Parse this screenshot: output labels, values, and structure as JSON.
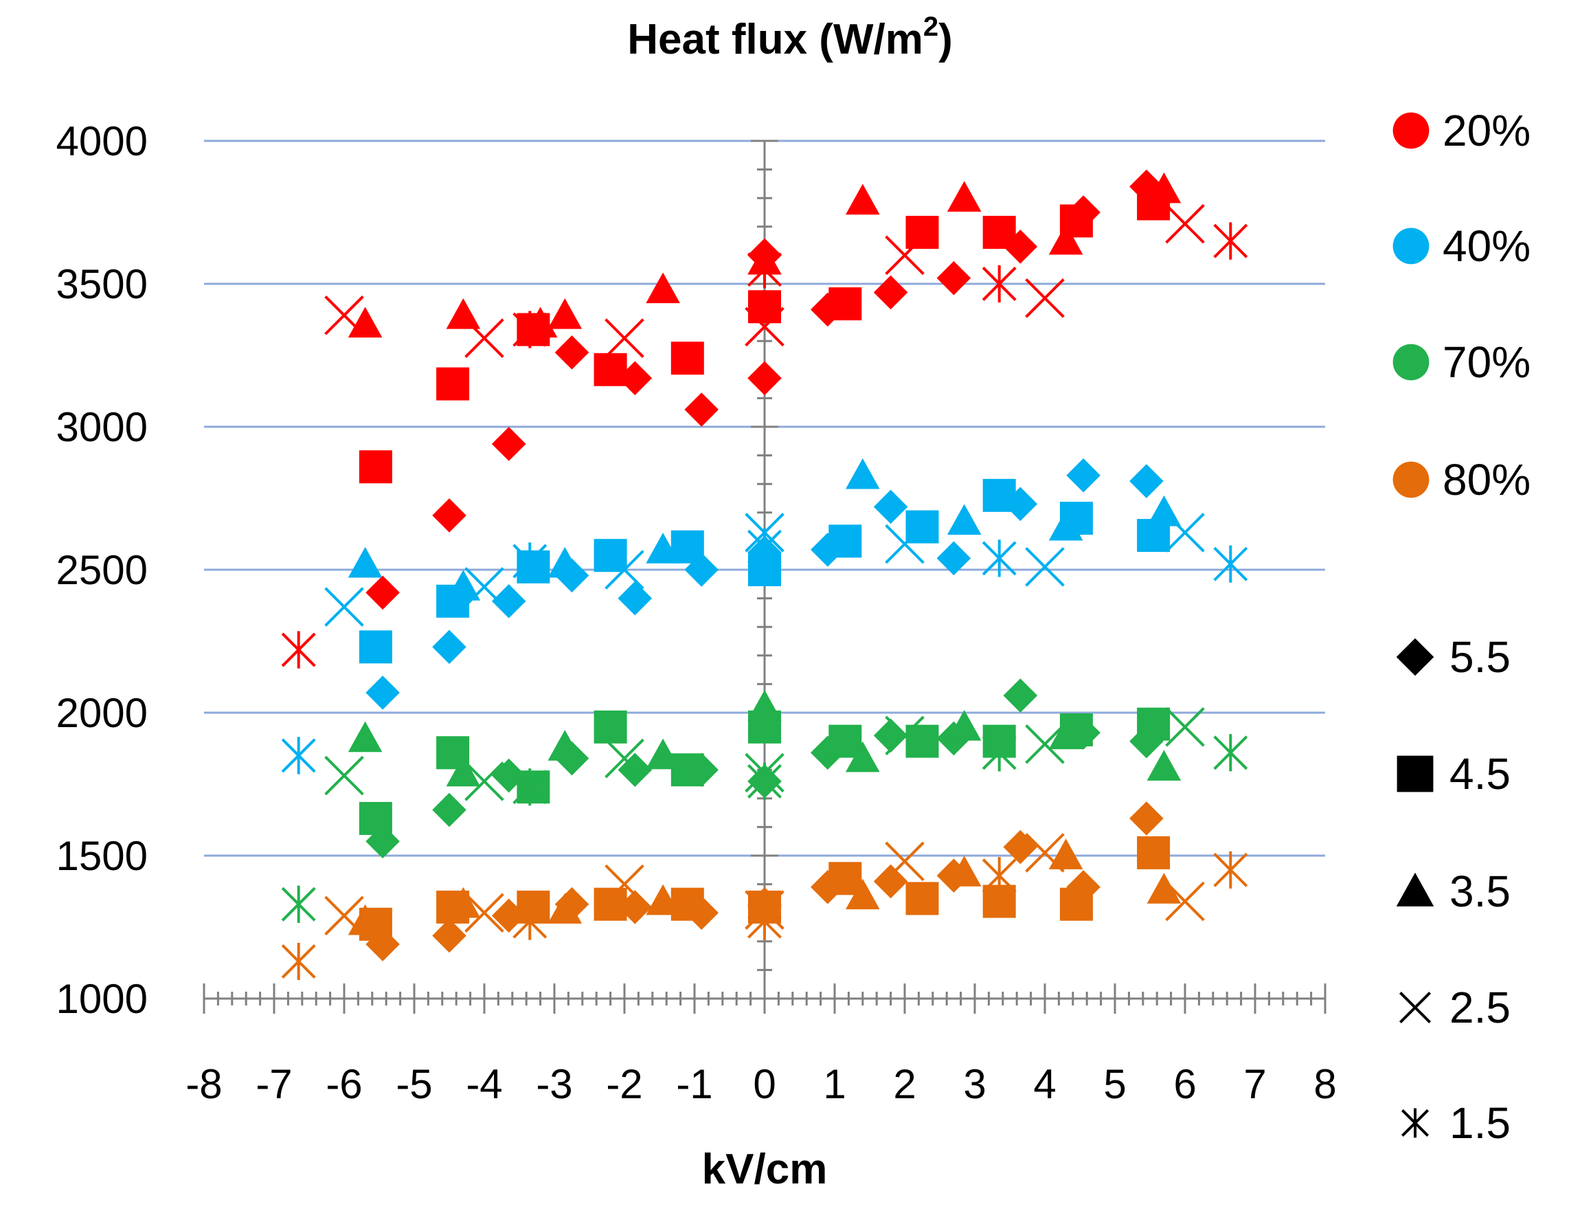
{
  "chart_data": {
    "type": "scatter",
    "title": "Heat flux (W/m",
    "title_sup": "2",
    "title_suffix": ")",
    "xlabel": "kV/cm",
    "ylabel": "",
    "xlim": [
      -8,
      8
    ],
    "ylim": [
      1000,
      4000
    ],
    "x_ticks": [
      "-8",
      "-7",
      "-6",
      "-5",
      "-4",
      "-3",
      "-2",
      "-1",
      "0",
      "1",
      "2",
      "3",
      "4",
      "5",
      "6",
      "7",
      "8"
    ],
    "y_ticks": [
      "4000",
      "3500",
      "3000",
      "2500",
      "2000",
      "1500",
      "1000"
    ],
    "gridlines": [
      1500,
      2000,
      2500,
      3000,
      3500,
      4000
    ],
    "legend_position": "right",
    "humidity_legend": [
      {
        "label": "20%",
        "color": "#ff0000"
      },
      {
        "label": "40%",
        "color": "#00b0f0"
      },
      {
        "label": "70%",
        "color": "#22b14c"
      },
      {
        "label": "80%",
        "color": "#e46c0a"
      }
    ],
    "marker_legend": [
      {
        "label": "5.5",
        "marker": "diamond"
      },
      {
        "label": "4.5",
        "marker": "square"
      },
      {
        "label": "3.5",
        "marker": "triangle"
      },
      {
        "label": "2.5",
        "marker": "x"
      },
      {
        "label": "1.5",
        "marker": "star"
      }
    ],
    "series": [
      {
        "name": "20% / 5.5",
        "color": "#ff0000",
        "marker": "diamond",
        "x": [
          -5.45,
          -4.5,
          -3.65,
          -2.75,
          -1.85,
          -0.9,
          0,
          0,
          0.9,
          1.8,
          2.7,
          3.65,
          4.55,
          5.45
        ],
        "y": [
          2420,
          2690,
          2940,
          3260,
          3170,
          3060,
          3170,
          3600,
          3410,
          3470,
          3520,
          3630,
          3750,
          3840
        ]
      },
      {
        "name": "20% / 4.5",
        "color": "#ff0000",
        "marker": "square",
        "x": [
          -5.55,
          -4.45,
          -3.3,
          -2.2,
          -1.1,
          0,
          1.15,
          2.25,
          3.35,
          4.45,
          5.55
        ],
        "y": [
          2860,
          3150,
          3340,
          3200,
          3240,
          3420,
          3430,
          3680,
          3680,
          3720,
          3780
        ]
      },
      {
        "name": "20% / 3.5",
        "color": "#ff0000",
        "marker": "triangle",
        "x": [
          -5.7,
          -4.3,
          -3.2,
          -2.85,
          -1.45,
          0,
          1.4,
          2.85,
          4.3,
          5.7
        ],
        "y": [
          3360,
          3390,
          3360,
          3390,
          3480,
          3580,
          3790,
          3800,
          3650,
          3830
        ]
      },
      {
        "name": "20% / 2.5",
        "color": "#ff0000",
        "marker": "x",
        "x": [
          -6,
          -4,
          -2,
          0,
          2,
          4,
          6
        ],
        "y": [
          3390,
          3310,
          3310,
          3350,
          3600,
          3450,
          3710
        ]
      },
      {
        "name": "20% / 1.5",
        "color": "#ff0000",
        "marker": "star",
        "x": [
          -6.65,
          -3.35,
          0,
          3.35,
          6.65
        ],
        "y": [
          2220,
          3340,
          3550,
          3500,
          3650
        ]
      },
      {
        "name": "40% / 5.5",
        "color": "#00b0f0",
        "marker": "diamond",
        "x": [
          -5.45,
          -4.5,
          -3.65,
          -2.75,
          -1.85,
          -0.9,
          0,
          0.9,
          1.8,
          2.7,
          3.65,
          4.55,
          5.45
        ],
        "y": [
          2070,
          2230,
          2390,
          2480,
          2400,
          2500,
          2560,
          2570,
          2720,
          2540,
          2730,
          2830,
          2810
        ]
      },
      {
        "name": "40% / 4.5",
        "color": "#00b0f0",
        "marker": "square",
        "x": [
          -5.55,
          -4.45,
          -3.3,
          -2.2,
          -1.1,
          0,
          1.15,
          2.25,
          3.35,
          4.45,
          5.55
        ],
        "y": [
          2230,
          2390,
          2510,
          2550,
          2580,
          2500,
          2600,
          2650,
          2760,
          2680,
          2620
        ]
      },
      {
        "name": "40% / 3.5",
        "color": "#00b0f0",
        "marker": "triangle",
        "x": [
          -5.7,
          -4.3,
          -2.85,
          -1.45,
          0,
          1.4,
          2.85,
          4.3,
          5.7
        ],
        "y": [
          2520,
          2440,
          2520,
          2570,
          2560,
          2830,
          2670,
          2650,
          2700
        ]
      },
      {
        "name": "40% / 2.5",
        "color": "#00b0f0",
        "marker": "x",
        "x": [
          -6,
          -4,
          -2,
          0,
          2,
          4,
          6
        ],
        "y": [
          2370,
          2440,
          2500,
          2630,
          2590,
          2510,
          2630
        ]
      },
      {
        "name": "40% / 1.5",
        "color": "#00b0f0",
        "marker": "star",
        "x": [
          -6.65,
          -3.35,
          0,
          3.35,
          6.65
        ],
        "y": [
          1850,
          2530,
          2580,
          2540,
          2520
        ]
      },
      {
        "name": "70% / 5.5",
        "color": "#22b14c",
        "marker": "diamond",
        "x": [
          -5.45,
          -4.5,
          -3.65,
          -2.75,
          -1.85,
          -0.9,
          0,
          0.9,
          1.8,
          2.7,
          3.65,
          4.55,
          5.45
        ],
        "y": [
          1550,
          1660,
          1780,
          1840,
          1800,
          1800,
          1760,
          1860,
          1920,
          1910,
          2060,
          1930,
          1900
        ]
      },
      {
        "name": "70% / 4.5",
        "color": "#22b14c",
        "marker": "square",
        "x": [
          -5.55,
          -4.45,
          -3.3,
          -2.2,
          -1.1,
          0,
          1.15,
          2.25,
          3.35,
          4.45,
          5.55
        ],
        "y": [
          1630,
          1860,
          1740,
          1950,
          1800,
          1950,
          1900,
          1900,
          1900,
          1940,
          1960
        ]
      },
      {
        "name": "70% / 3.5",
        "color": "#22b14c",
        "marker": "triangle",
        "x": [
          -5.7,
          -4.3,
          -2.85,
          -1.45,
          0,
          1.4,
          2.85,
          4.3,
          5.7
        ],
        "y": [
          1910,
          1790,
          1880,
          1850,
          2020,
          1840,
          1950,
          1920,
          1810
        ]
      },
      {
        "name": "70% / 2.5",
        "color": "#22b14c",
        "marker": "x",
        "x": [
          -6,
          -4,
          -2,
          0,
          2,
          4,
          6
        ],
        "y": [
          1780,
          1760,
          1840,
          1790,
          1920,
          1890,
          1950
        ]
      },
      {
        "name": "70% / 1.5",
        "color": "#22b14c",
        "marker": "star",
        "x": [
          -6.65,
          -3.35,
          0,
          3.35,
          6.65
        ],
        "y": [
          1330,
          1740,
          1760,
          1860,
          1860
        ]
      },
      {
        "name": "80% / 5.5",
        "color": "#e46c0a",
        "marker": "diamond",
        "x": [
          -5.45,
          -4.5,
          -3.65,
          -2.75,
          -1.85,
          -0.9,
          0,
          0.9,
          1.8,
          2.7,
          3.65,
          4.55,
          5.45
        ],
        "y": [
          1190,
          1220,
          1290,
          1330,
          1320,
          1300,
          1330,
          1390,
          1410,
          1430,
          1530,
          1390,
          1630
        ]
      },
      {
        "name": "80% / 4.5",
        "color": "#e46c0a",
        "marker": "square",
        "x": [
          -5.55,
          -4.45,
          -3.3,
          -2.2,
          -1.1,
          0,
          1.15,
          2.25,
          3.35,
          4.45,
          5.55
        ],
        "y": [
          1260,
          1320,
          1320,
          1330,
          1330,
          1320,
          1420,
          1350,
          1340,
          1330,
          1510
        ]
      },
      {
        "name": "80% / 3.5",
        "color": "#e46c0a",
        "marker": "triangle",
        "x": [
          -5.7,
          -4.3,
          -2.85,
          -1.45,
          0,
          1.4,
          2.85,
          4.3,
          5.7
        ],
        "y": [
          1270,
          1330,
          1310,
          1340,
          1330,
          1360,
          1440,
          1500,
          1380
        ]
      },
      {
        "name": "80% / 2.5",
        "color": "#e46c0a",
        "marker": "x",
        "x": [
          -6,
          -4,
          -2,
          0,
          2,
          4,
          6
        ],
        "y": [
          1290,
          1300,
          1400,
          1310,
          1480,
          1510,
          1340
        ]
      },
      {
        "name": "80% / 1.5",
        "color": "#e46c0a",
        "marker": "star",
        "x": [
          -6.65,
          -3.35,
          0,
          3.35,
          6.65
        ],
        "y": [
          1130,
          1270,
          1270,
          1430,
          1450
        ]
      }
    ]
  }
}
